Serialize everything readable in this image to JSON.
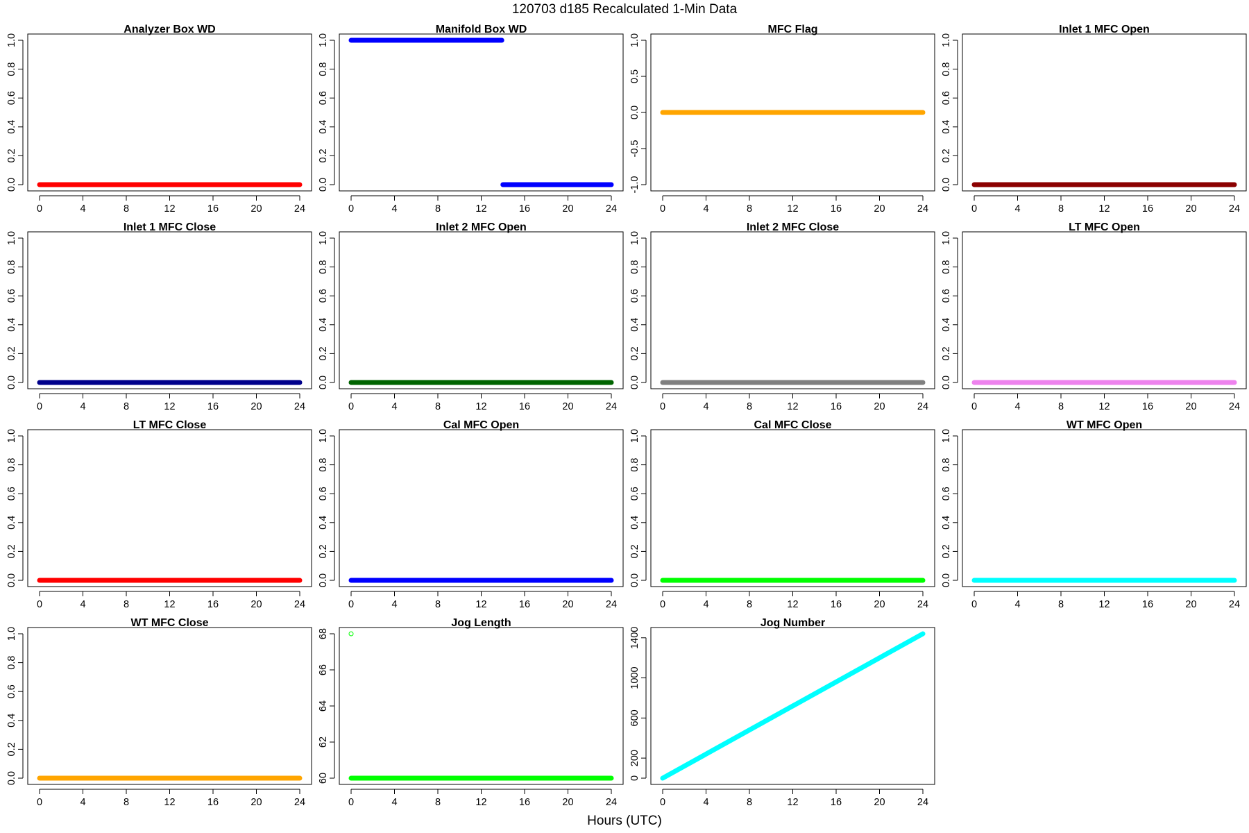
{
  "title": "120703   d185   Recalculated 1-Min Data",
  "xlabel": "Hours (UTC)",
  "chart_data": [
    {
      "type": "scatter",
      "title": "Analyzer Box WD",
      "color": "#ff0000",
      "xlim": [
        0,
        24
      ],
      "ylim": [
        0,
        1
      ],
      "xticks": [
        0,
        4,
        8,
        12,
        16,
        20,
        24
      ],
      "yticks": [
        "0.0",
        "0.2",
        "0.4",
        "0.6",
        "0.8",
        "1.0"
      ],
      "segments": [
        {
          "x": [
            0,
            24
          ],
          "y": [
            0,
            0
          ]
        }
      ],
      "points": []
    },
    {
      "type": "scatter",
      "title": "Manifold Box WD",
      "color": "#0000ff",
      "xlim": [
        0,
        24
      ],
      "ylim": [
        0,
        1
      ],
      "xticks": [
        0,
        4,
        8,
        12,
        16,
        20,
        24
      ],
      "yticks": [
        "0.0",
        "0.2",
        "0.4",
        "0.6",
        "0.8",
        "1.0"
      ],
      "segments": [
        {
          "x": [
            0,
            13.9
          ],
          "y": [
            1,
            1
          ]
        },
        {
          "x": [
            14,
            24
          ],
          "y": [
            0,
            0
          ]
        }
      ],
      "points": []
    },
    {
      "type": "scatter",
      "title": "MFC Flag",
      "color": "#ffa500",
      "xlim": [
        0,
        24
      ],
      "ylim": [
        -1,
        1
      ],
      "xticks": [
        0,
        4,
        8,
        12,
        16,
        20,
        24
      ],
      "yticks": [
        "-1.0",
        "-0.5",
        "0.0",
        "0.5",
        "1.0"
      ],
      "segments": [
        {
          "x": [
            0,
            24
          ],
          "y": [
            0,
            0
          ]
        }
      ],
      "points": []
    },
    {
      "type": "scatter",
      "title": "Inlet 1 MFC Open",
      "color": "#8b0000",
      "xlim": [
        0,
        24
      ],
      "ylim": [
        0,
        1
      ],
      "xticks": [
        0,
        4,
        8,
        12,
        16,
        20,
        24
      ],
      "yticks": [
        "0.0",
        "0.2",
        "0.4",
        "0.6",
        "0.8",
        "1.0"
      ],
      "segments": [
        {
          "x": [
            0,
            24
          ],
          "y": [
            0,
            0
          ]
        }
      ],
      "points": []
    },
    {
      "type": "scatter",
      "title": "Inlet 1 MFC Close",
      "color": "#00008b",
      "xlim": [
        0,
        24
      ],
      "ylim": [
        0,
        1
      ],
      "xticks": [
        0,
        4,
        8,
        12,
        16,
        20,
        24
      ],
      "yticks": [
        "0.0",
        "0.2",
        "0.4",
        "0.6",
        "0.8",
        "1.0"
      ],
      "segments": [
        {
          "x": [
            0,
            24
          ],
          "y": [
            0,
            0
          ]
        }
      ],
      "points": []
    },
    {
      "type": "scatter",
      "title": "Inlet 2 MFC Open",
      "color": "#006400",
      "xlim": [
        0,
        24
      ],
      "ylim": [
        0,
        1
      ],
      "xticks": [
        0,
        4,
        8,
        12,
        16,
        20,
        24
      ],
      "yticks": [
        "0.0",
        "0.2",
        "0.4",
        "0.6",
        "0.8",
        "1.0"
      ],
      "segments": [
        {
          "x": [
            0,
            24
          ],
          "y": [
            0,
            0
          ]
        }
      ],
      "points": []
    },
    {
      "type": "scatter",
      "title": "Inlet 2 MFC Close",
      "color": "#808080",
      "xlim": [
        0,
        24
      ],
      "ylim": [
        0,
        1
      ],
      "xticks": [
        0,
        4,
        8,
        12,
        16,
        20,
        24
      ],
      "yticks": [
        "0.0",
        "0.2",
        "0.4",
        "0.6",
        "0.8",
        "1.0"
      ],
      "segments": [
        {
          "x": [
            0,
            24
          ],
          "y": [
            0,
            0
          ]
        }
      ],
      "points": []
    },
    {
      "type": "scatter",
      "title": "LT MFC Open",
      "color": "#ee82ee",
      "xlim": [
        0,
        24
      ],
      "ylim": [
        0,
        1
      ],
      "xticks": [
        0,
        4,
        8,
        12,
        16,
        20,
        24
      ],
      "yticks": [
        "0.0",
        "0.2",
        "0.4",
        "0.6",
        "0.8",
        "1.0"
      ],
      "segments": [
        {
          "x": [
            0,
            24
          ],
          "y": [
            0,
            0
          ]
        }
      ],
      "points": []
    },
    {
      "type": "scatter",
      "title": "LT MFC Close",
      "color": "#ff0000",
      "xlim": [
        0,
        24
      ],
      "ylim": [
        0,
        1
      ],
      "xticks": [
        0,
        4,
        8,
        12,
        16,
        20,
        24
      ],
      "yticks": [
        "0.0",
        "0.2",
        "0.4",
        "0.6",
        "0.8",
        "1.0"
      ],
      "segments": [
        {
          "x": [
            0,
            24
          ],
          "y": [
            0,
            0
          ]
        }
      ],
      "points": []
    },
    {
      "type": "scatter",
      "title": "Cal MFC Open",
      "color": "#0000ff",
      "xlim": [
        0,
        24
      ],
      "ylim": [
        0,
        1
      ],
      "xticks": [
        0,
        4,
        8,
        12,
        16,
        20,
        24
      ],
      "yticks": [
        "0.0",
        "0.2",
        "0.4",
        "0.6",
        "0.8",
        "1.0"
      ],
      "segments": [
        {
          "x": [
            0,
            24
          ],
          "y": [
            0,
            0
          ]
        }
      ],
      "points": []
    },
    {
      "type": "scatter",
      "title": "Cal MFC Close",
      "color": "#00ff00",
      "xlim": [
        0,
        24
      ],
      "ylim": [
        0,
        1
      ],
      "xticks": [
        0,
        4,
        8,
        12,
        16,
        20,
        24
      ],
      "yticks": [
        "0.0",
        "0.2",
        "0.4",
        "0.6",
        "0.8",
        "1.0"
      ],
      "segments": [
        {
          "x": [
            0,
            24
          ],
          "y": [
            0,
            0
          ]
        }
      ],
      "points": []
    },
    {
      "type": "scatter",
      "title": "WT MFC Open",
      "color": "#00ffff",
      "xlim": [
        0,
        24
      ],
      "ylim": [
        0,
        1
      ],
      "xticks": [
        0,
        4,
        8,
        12,
        16,
        20,
        24
      ],
      "yticks": [
        "0.0",
        "0.2",
        "0.4",
        "0.6",
        "0.8",
        "1.0"
      ],
      "segments": [
        {
          "x": [
            0,
            24
          ],
          "y": [
            0,
            0
          ]
        }
      ],
      "points": []
    },
    {
      "type": "scatter",
      "title": "WT MFC Close",
      "color": "#ffa500",
      "xlim": [
        0,
        24
      ],
      "ylim": [
        0,
        1
      ],
      "xticks": [
        0,
        4,
        8,
        12,
        16,
        20,
        24
      ],
      "yticks": [
        "0.0",
        "0.2",
        "0.4",
        "0.6",
        "0.8",
        "1.0"
      ],
      "segments": [
        {
          "x": [
            0,
            24
          ],
          "y": [
            0,
            0
          ]
        }
      ],
      "points": []
    },
    {
      "type": "scatter",
      "title": "Jog Length",
      "color": "#00ff00",
      "xlim": [
        0,
        24
      ],
      "ylim": [
        60,
        68
      ],
      "xticks": [
        0,
        4,
        8,
        12,
        16,
        20,
        24
      ],
      "yticks": [
        "60",
        "62",
        "64",
        "66",
        "68"
      ],
      "segments": [
        {
          "x": [
            0,
            24
          ],
          "y": [
            60,
            60
          ]
        }
      ],
      "points": [
        {
          "x": 0,
          "y": 68
        }
      ]
    },
    {
      "type": "scatter",
      "title": "Jog Number",
      "color": "#00ffff",
      "xlim": [
        0,
        24
      ],
      "ylim": [
        0,
        1440
      ],
      "xticks": [
        0,
        4,
        8,
        12,
        16,
        20,
        24
      ],
      "yticks": [
        "0",
        "200",
        "600",
        "1000",
        "1400"
      ],
      "segments": [
        {
          "x": [
            0,
            24
          ],
          "y": [
            0,
            1440
          ]
        }
      ],
      "points": []
    }
  ]
}
